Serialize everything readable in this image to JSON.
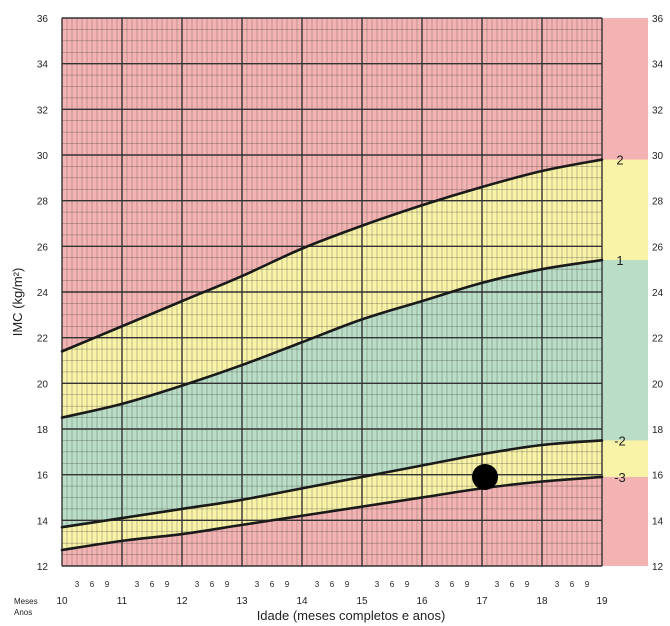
{
  "chart_data": {
    "type": "line",
    "xlabel": "Idade (meses completos e anos)",
    "ylabel": "IMC (kg/m²)",
    "xlim": [
      10,
      19
    ],
    "ylim": [
      12,
      36
    ],
    "y_ticks": [
      12,
      14,
      16,
      18,
      20,
      22,
      24,
      26,
      28,
      30,
      32,
      34,
      36
    ],
    "x_year_ticks": [
      10,
      11,
      12,
      13,
      14,
      15,
      16,
      17,
      18,
      19
    ],
    "month_tick_labels": [
      "3",
      "6",
      "9"
    ],
    "meses_label": "Meses",
    "anos_label": "Anos",
    "grid": true,
    "colors": {
      "red": "#f4b3b3",
      "yellow": "#f8f3a7",
      "green": "#b9ddc6",
      "grid": "#333333",
      "curve": "#1a1a1a",
      "point": "#000000"
    },
    "x": [
      10,
      11,
      12,
      13,
      14,
      15,
      16,
      17,
      18,
      19
    ],
    "series": [
      {
        "name": "2",
        "values": [
          21.4,
          22.5,
          23.6,
          24.7,
          25.9,
          26.9,
          27.8,
          28.6,
          29.3,
          29.8
        ]
      },
      {
        "name": "1",
        "values": [
          18.5,
          19.1,
          19.9,
          20.8,
          21.8,
          22.8,
          23.6,
          24.4,
          25.0,
          25.4
        ]
      },
      {
        "name": "-2",
        "values": [
          13.7,
          14.1,
          14.5,
          14.9,
          15.4,
          15.9,
          16.4,
          16.9,
          17.3,
          17.5
        ]
      },
      {
        "name": "-3",
        "values": [
          12.7,
          13.1,
          13.4,
          13.8,
          14.2,
          14.6,
          15.0,
          15.4,
          15.7,
          15.9
        ]
      }
    ],
    "points": [
      {
        "x": 17.05,
        "y": 15.9
      }
    ]
  }
}
